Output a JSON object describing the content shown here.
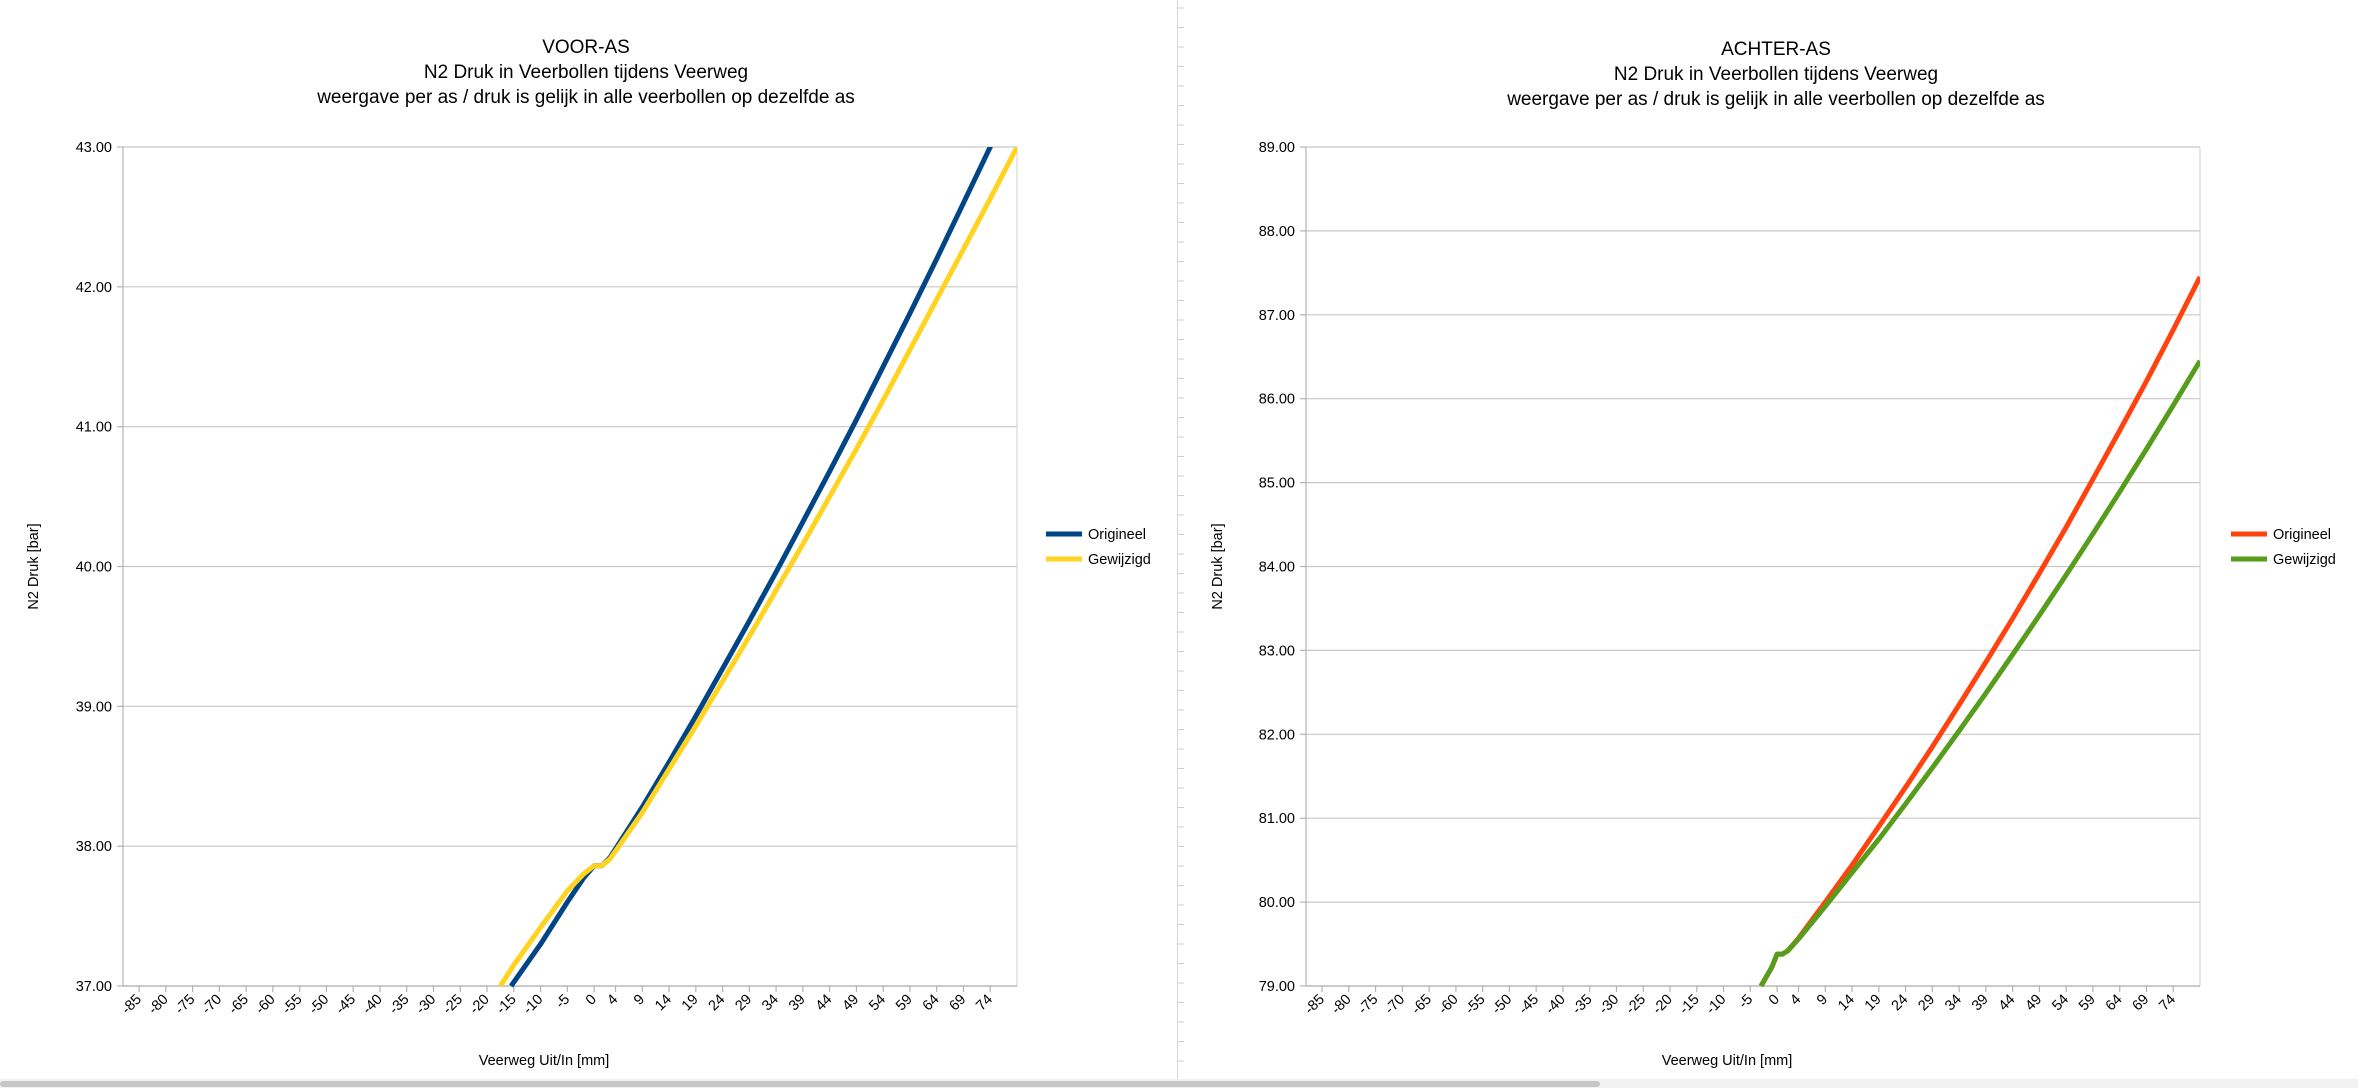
{
  "chart_data": [
    {
      "type": "line",
      "title_lines": [
        "VOOR-AS",
        "N2 Druk in Veerbollen tijdens Veerweg",
        "weergave per as / druk is gelijk in alle veerbollen op dezelfde as"
      ],
      "xlabel": "Veerweg Uit/In [mm]",
      "ylabel": "N2 Druk [bar]",
      "xlim": [
        -88,
        79
      ],
      "ylim": [
        37,
        43
      ],
      "y_ticks": [
        "37.00",
        "38.00",
        "39.00",
        "40.00",
        "41.00",
        "42.00",
        "43.00"
      ],
      "x_ticks": [
        "-85",
        "-80",
        "-75",
        "-70",
        "-65",
        "-60",
        "-55",
        "-50",
        "-45",
        "-40",
        "-35",
        "-30",
        "-25",
        "-20",
        "-15",
        "-10",
        "-5",
        "0",
        "4",
        "9",
        "14",
        "19",
        "24",
        "29",
        "34",
        "39",
        "44",
        "49",
        "54",
        "59",
        "64",
        "69",
        "74"
      ],
      "x_tick_values": [
        -85,
        -80,
        -75,
        -70,
        -65,
        -60,
        -55,
        -50,
        -45,
        -40,
        -35,
        -30,
        -25,
        -20,
        -15,
        -10,
        -5,
        0,
        4,
        9,
        14,
        19,
        24,
        29,
        34,
        39,
        44,
        49,
        54,
        59,
        64,
        69,
        74
      ],
      "grid": "horizontal",
      "legend_position": "right",
      "series": [
        {
          "name": "Origineel",
          "color": "#004586",
          "x": [
            -15.5,
            -10,
            -5,
            -2,
            0,
            1.5,
            3,
            9,
            14,
            19,
            24,
            29,
            34,
            39,
            44,
            49,
            54,
            59,
            64,
            69,
            74,
            79
          ],
          "y": [
            37.0,
            37.3,
            37.6,
            37.77,
            37.86,
            37.86,
            37.92,
            38.28,
            38.6,
            38.93,
            39.27,
            39.61,
            39.96,
            40.32,
            40.68,
            41.05,
            41.43,
            41.81,
            42.2,
            42.6,
            43.0,
            43.4
          ]
        },
        {
          "name": "Gewijzigd",
          "color": "#ffd320",
          "x": [
            -17.5,
            -15,
            -10,
            -5,
            -2,
            0,
            1.5,
            3,
            9,
            14,
            19,
            24,
            29,
            34,
            39,
            44,
            49,
            54,
            59,
            64,
            69,
            74,
            79
          ],
          "y": [
            37.0,
            37.15,
            37.42,
            37.68,
            37.8,
            37.86,
            37.86,
            37.91,
            38.24,
            38.55,
            38.86,
            39.18,
            39.5,
            39.83,
            40.16,
            40.5,
            40.84,
            41.19,
            41.55,
            41.91,
            42.27,
            42.63,
            43.0
          ]
        }
      ]
    },
    {
      "type": "line",
      "title_lines": [
        "ACHTER-AS",
        "N2 Druk in Veerbollen tijdens Veerweg",
        "weergave per as / druk is gelijk in alle veerbollen op dezelfde as"
      ],
      "xlabel": "Veerweg Uit/In [mm]",
      "ylabel": "N2 Druk [bar]",
      "xlim": [
        -88,
        79
      ],
      "ylim": [
        79,
        89
      ],
      "y_ticks": [
        "79.00",
        "80.00",
        "81.00",
        "82.00",
        "83.00",
        "84.00",
        "85.00",
        "86.00",
        "87.00",
        "88.00",
        "89.00"
      ],
      "x_ticks": [
        "-85",
        "-80",
        "-75",
        "-70",
        "-65",
        "-60",
        "-55",
        "-50",
        "-45",
        "-40",
        "-35",
        "-30",
        "-25",
        "-20",
        "-15",
        "-10",
        "-5",
        "0",
        "4",
        "9",
        "14",
        "19",
        "24",
        "29",
        "34",
        "39",
        "44",
        "49",
        "54",
        "59",
        "64",
        "69",
        "74"
      ],
      "x_tick_values": [
        -85,
        -80,
        -75,
        -70,
        -65,
        -60,
        -55,
        -50,
        -45,
        -40,
        -35,
        -30,
        -25,
        -20,
        -15,
        -10,
        -5,
        0,
        4,
        9,
        14,
        19,
        24,
        29,
        34,
        39,
        44,
        49,
        54,
        59,
        64,
        69,
        74
      ],
      "grid": "horizontal",
      "legend_position": "right",
      "series": [
        {
          "name": "Origineel",
          "color": "#ff420e",
          "x": [
            -3,
            -1,
            0,
            1,
            2,
            4,
            9,
            14,
            19,
            24,
            29,
            34,
            39,
            44,
            49,
            54,
            59,
            64,
            69,
            74,
            79
          ],
          "y": [
            79.0,
            79.22,
            79.38,
            79.38,
            79.42,
            79.57,
            80.0,
            80.44,
            80.9,
            81.37,
            81.85,
            82.35,
            82.86,
            83.38,
            83.92,
            84.47,
            85.04,
            85.62,
            86.21,
            86.82,
            87.45
          ]
        },
        {
          "name": "Gewijzigd",
          "color": "#579d1c",
          "x": [
            -3,
            -1,
            0,
            1,
            2,
            4,
            9,
            14,
            19,
            24,
            29,
            34,
            39,
            44,
            49,
            54,
            59,
            64,
            69,
            74,
            79
          ],
          "y": [
            79.0,
            79.22,
            79.38,
            79.38,
            79.42,
            79.56,
            79.95,
            80.35,
            80.75,
            81.17,
            81.6,
            82.04,
            82.49,
            82.95,
            83.42,
            83.9,
            84.39,
            84.89,
            85.4,
            85.92,
            86.45
          ]
        }
      ]
    }
  ]
}
